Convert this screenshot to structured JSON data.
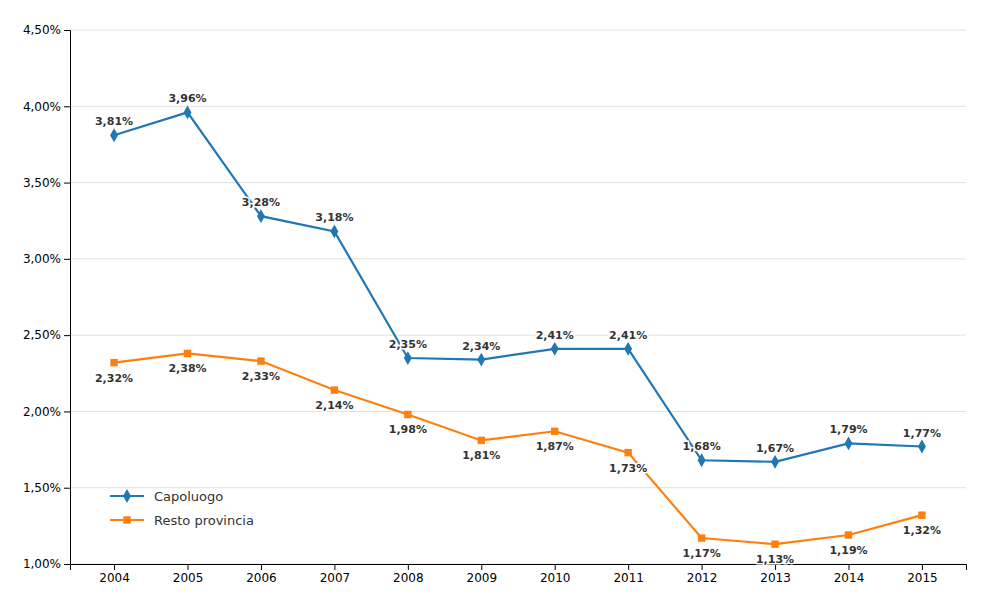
{
  "chart_data": {
    "type": "line",
    "x": [
      2004,
      2005,
      2006,
      2007,
      2008,
      2009,
      2010,
      2011,
      2012,
      2013,
      2014,
      2015
    ],
    "series": [
      {
        "name": "Capoluogo",
        "marker": "diamond",
        "values": [
          3.81,
          3.96,
          3.28,
          3.18,
          2.35,
          2.34,
          2.41,
          2.41,
          1.68,
          1.67,
          1.79,
          1.77
        ],
        "value_labels": [
          "3,81%",
          "3,96%",
          "3,28%",
          "3,18%",
          "2,35%",
          "2,34%",
          "2,41%",
          "2,41%",
          "1,68%",
          "1,67%",
          "1,79%",
          "1,77%"
        ]
      },
      {
        "name": "Resto provincia",
        "marker": "square",
        "values": [
          2.32,
          2.38,
          2.33,
          2.14,
          1.98,
          1.81,
          1.87,
          1.73,
          1.17,
          1.13,
          1.19,
          1.32
        ],
        "value_labels": [
          "2,32%",
          "2,38%",
          "2,33%",
          "2,14%",
          "1,98%",
          "1,81%",
          "1,87%",
          "1,73%",
          "1,17%",
          "1,13%",
          "1,19%",
          "1,32%"
        ]
      }
    ],
    "xlim": [
      2003.4,
      2015.6
    ],
    "xticks": [
      2004,
      2005,
      2006,
      2007,
      2008,
      2009,
      2010,
      2011,
      2012,
      2013,
      2014,
      2015
    ],
    "ylim": [
      1.0,
      4.5
    ],
    "yticks": [
      {
        "value": 1.0,
        "label": "1,00%"
      },
      {
        "value": 1.5,
        "label": "1,50%"
      },
      {
        "value": 2.0,
        "label": "2,00%"
      },
      {
        "value": 2.5,
        "label": "2,50%"
      },
      {
        "value": 3.0,
        "label": "3,00%"
      },
      {
        "value": 3.5,
        "label": "3,50%"
      },
      {
        "value": 4.0,
        "label": "4,00%"
      },
      {
        "value": 4.5,
        "label": "4,50%"
      }
    ],
    "grid": true,
    "legend": "lower left",
    "data_labels": true
  }
}
